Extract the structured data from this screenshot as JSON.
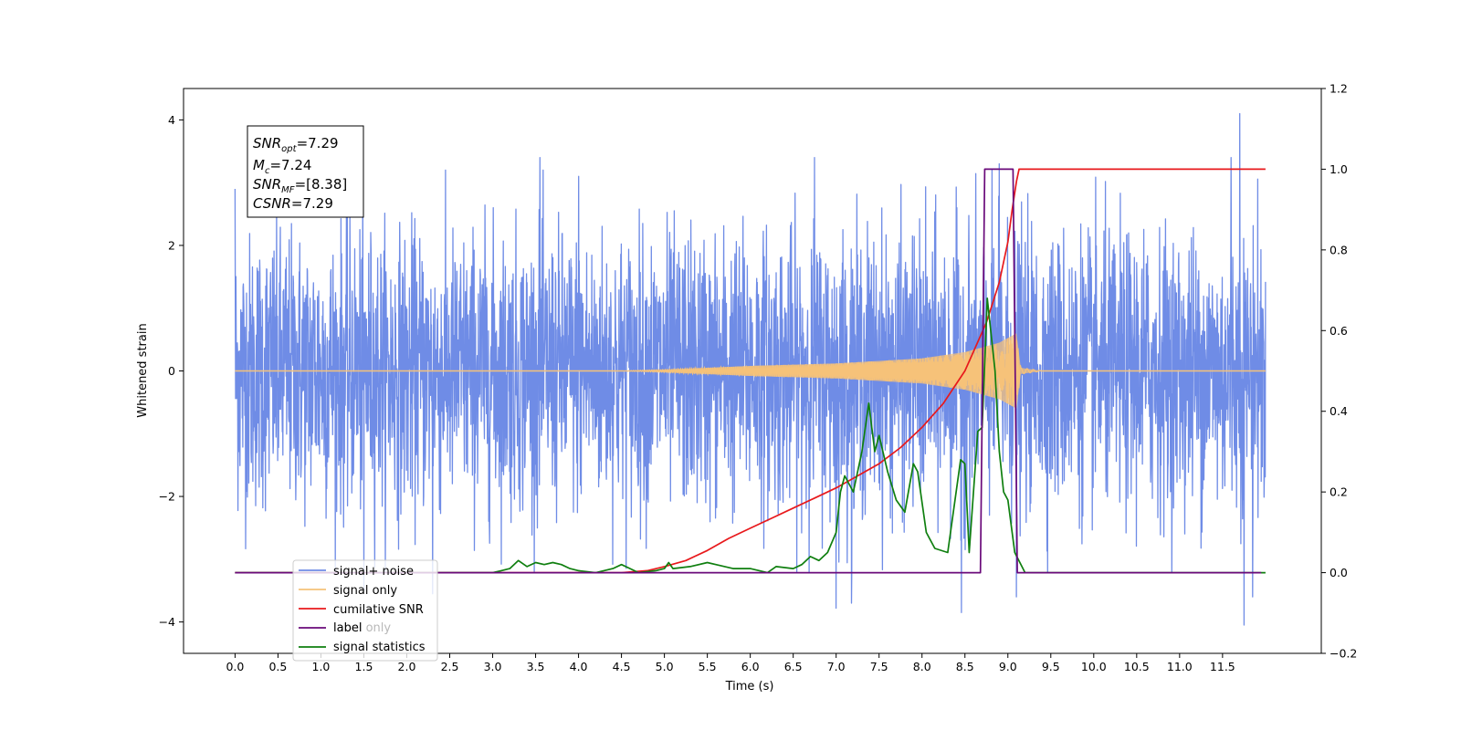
{
  "chart_data": {
    "type": "line",
    "xlabel": "Time (s)",
    "ylabel": "Whitened strain",
    "xlim": [
      -0.6,
      12.65
    ],
    "ylim": [
      -4.5,
      4.5
    ],
    "y2lim": [
      -0.2,
      1.2
    ],
    "x_ticks": [
      "0.0",
      "0.5",
      "1.0",
      "1.5",
      "2.0",
      "2.5",
      "3.0",
      "3.5",
      "4.0",
      "4.5",
      "5.0",
      "5.5",
      "6.0",
      "6.5",
      "7.0",
      "7.5",
      "8.0",
      "8.5",
      "9.0",
      "9.5",
      "10.0",
      "10.5",
      "11.0",
      "11.5"
    ],
    "y_ticks": [
      "4",
      "2",
      "0",
      "−2",
      "−4"
    ],
    "y2_ticks": [
      "1.2",
      "1.0",
      "0.8",
      "0.6",
      "0.4",
      "0.2",
      "0.0",
      "−0.2"
    ],
    "stats_box": {
      "snr_opt": {
        "base": "SNR",
        "sub": "opt",
        "value": "=7.29"
      },
      "mc": {
        "base": "M",
        "sub": "c",
        "value": "=7.24"
      },
      "snr_mf": {
        "base": "SNR",
        "sub": "MF",
        "value": "=[8.38]"
      },
      "csnr": {
        "base": "CSNR",
        "value": "=7.29"
      }
    },
    "legend_position": "lower-left",
    "series": [
      {
        "name": "signal+ noise",
        "color": "#6f8ce6",
        "axis": "left",
        "kind": "noise",
        "t_start": 0.0,
        "t_end": 12.0,
        "sigma": 1.0,
        "peaks": [
          [
            0.0,
            2.9
          ],
          [
            3.55,
            3.4
          ],
          [
            4.0,
            3.1
          ],
          [
            6.75,
            3.4
          ],
          [
            8.9,
            3.3
          ],
          [
            11.6,
            3.4
          ],
          [
            11.7,
            4.1
          ],
          [
            11.75,
            -4.05
          ],
          [
            8.46,
            -3.85
          ],
          [
            7.0,
            -3.78
          ],
          [
            7.18,
            -3.7
          ],
          [
            11.85,
            -3.6
          ],
          [
            2.3,
            -3.55
          ],
          [
            9.1,
            -3.6
          ],
          [
            1.5,
            -3.5
          ]
        ]
      },
      {
        "name": "signal only",
        "color": "#f5c27a",
        "axis": "left",
        "kind": "chirp",
        "t_start": 0.0,
        "t_end": 12.0,
        "t_merge": 9.1,
        "envelope": [
          [
            0.0,
            0.0
          ],
          [
            4.5,
            0.0
          ],
          [
            5.0,
            0.02
          ],
          [
            6.0,
            0.08
          ],
          [
            7.0,
            0.12
          ],
          [
            8.0,
            0.2
          ],
          [
            8.5,
            0.3
          ],
          [
            8.9,
            0.45
          ],
          [
            9.1,
            0.6
          ],
          [
            9.15,
            0.05
          ],
          [
            9.4,
            0.0
          ],
          [
            12.0,
            0.0
          ]
        ]
      },
      {
        "name": "cumilative SNR",
        "color": "#e8191c",
        "axis": "right",
        "kind": "line",
        "points": [
          [
            0.0,
            0.0
          ],
          [
            4.5,
            0.0
          ],
          [
            4.8,
            0.005
          ],
          [
            5.0,
            0.015
          ],
          [
            5.25,
            0.03
          ],
          [
            5.5,
            0.055
          ],
          [
            5.75,
            0.085
          ],
          [
            6.0,
            0.11
          ],
          [
            6.25,
            0.135
          ],
          [
            6.5,
            0.16
          ],
          [
            6.75,
            0.185
          ],
          [
            7.0,
            0.21
          ],
          [
            7.25,
            0.24
          ],
          [
            7.5,
            0.27
          ],
          [
            7.75,
            0.31
          ],
          [
            8.0,
            0.36
          ],
          [
            8.25,
            0.42
          ],
          [
            8.5,
            0.5
          ],
          [
            8.75,
            0.62
          ],
          [
            8.9,
            0.72
          ],
          [
            9.0,
            0.82
          ],
          [
            9.05,
            0.9
          ],
          [
            9.1,
            0.97
          ],
          [
            9.13,
            1.0
          ],
          [
            12.0,
            1.0
          ]
        ]
      },
      {
        "name": "label",
        "color": "#6a0a7a",
        "axis": "right",
        "kind": "line",
        "points": [
          [
            0.0,
            0.0
          ],
          [
            8.68,
            0.0
          ],
          [
            8.73,
            1.0
          ],
          [
            9.06,
            1.0
          ],
          [
            9.11,
            0.0
          ],
          [
            11.95,
            0.0
          ]
        ]
      },
      {
        "name": "signal statistics",
        "color": "#0f7f0f",
        "axis": "right",
        "kind": "line",
        "points": [
          [
            0.0,
            0.0
          ],
          [
            3.0,
            0.0
          ],
          [
            3.1,
            0.005
          ],
          [
            3.2,
            0.01
          ],
          [
            3.3,
            0.03
          ],
          [
            3.4,
            0.015
          ],
          [
            3.5,
            0.025
          ],
          [
            3.6,
            0.02
          ],
          [
            3.7,
            0.025
          ],
          [
            3.8,
            0.02
          ],
          [
            3.9,
            0.01
          ],
          [
            4.0,
            0.005
          ],
          [
            4.2,
            0.0
          ],
          [
            4.4,
            0.01
          ],
          [
            4.5,
            0.02
          ],
          [
            4.6,
            0.01
          ],
          [
            4.7,
            0.0
          ],
          [
            4.9,
            0.005
          ],
          [
            5.0,
            0.01
          ],
          [
            5.05,
            0.025
          ],
          [
            5.1,
            0.01
          ],
          [
            5.3,
            0.015
          ],
          [
            5.5,
            0.025
          ],
          [
            5.6,
            0.02
          ],
          [
            5.8,
            0.01
          ],
          [
            6.0,
            0.01
          ],
          [
            6.2,
            0.0
          ],
          [
            6.3,
            0.015
          ],
          [
            6.5,
            0.01
          ],
          [
            6.6,
            0.02
          ],
          [
            6.7,
            0.04
          ],
          [
            6.8,
            0.03
          ],
          [
            6.9,
            0.05
          ],
          [
            7.0,
            0.1
          ],
          [
            7.05,
            0.2
          ],
          [
            7.1,
            0.24
          ],
          [
            7.2,
            0.2
          ],
          [
            7.3,
            0.3
          ],
          [
            7.38,
            0.42
          ],
          [
            7.45,
            0.3
          ],
          [
            7.5,
            0.34
          ],
          [
            7.6,
            0.25
          ],
          [
            7.7,
            0.18
          ],
          [
            7.8,
            0.15
          ],
          [
            7.9,
            0.27
          ],
          [
            7.95,
            0.25
          ],
          [
            8.05,
            0.1
          ],
          [
            8.15,
            0.06
          ],
          [
            8.3,
            0.05
          ],
          [
            8.45,
            0.28
          ],
          [
            8.5,
            0.27
          ],
          [
            8.55,
            0.05
          ],
          [
            8.65,
            0.35
          ],
          [
            8.7,
            0.36
          ],
          [
            8.76,
            0.68
          ],
          [
            8.85,
            0.5
          ],
          [
            8.9,
            0.3
          ],
          [
            8.95,
            0.2
          ],
          [
            9.0,
            0.18
          ],
          [
            9.08,
            0.05
          ],
          [
            9.2,
            0.0
          ],
          [
            12.0,
            0.0
          ]
        ]
      },
      {
        "name": "label only",
        "color": "#b8b8b8",
        "axis": "right",
        "kind": "hidden",
        "points": []
      }
    ]
  }
}
